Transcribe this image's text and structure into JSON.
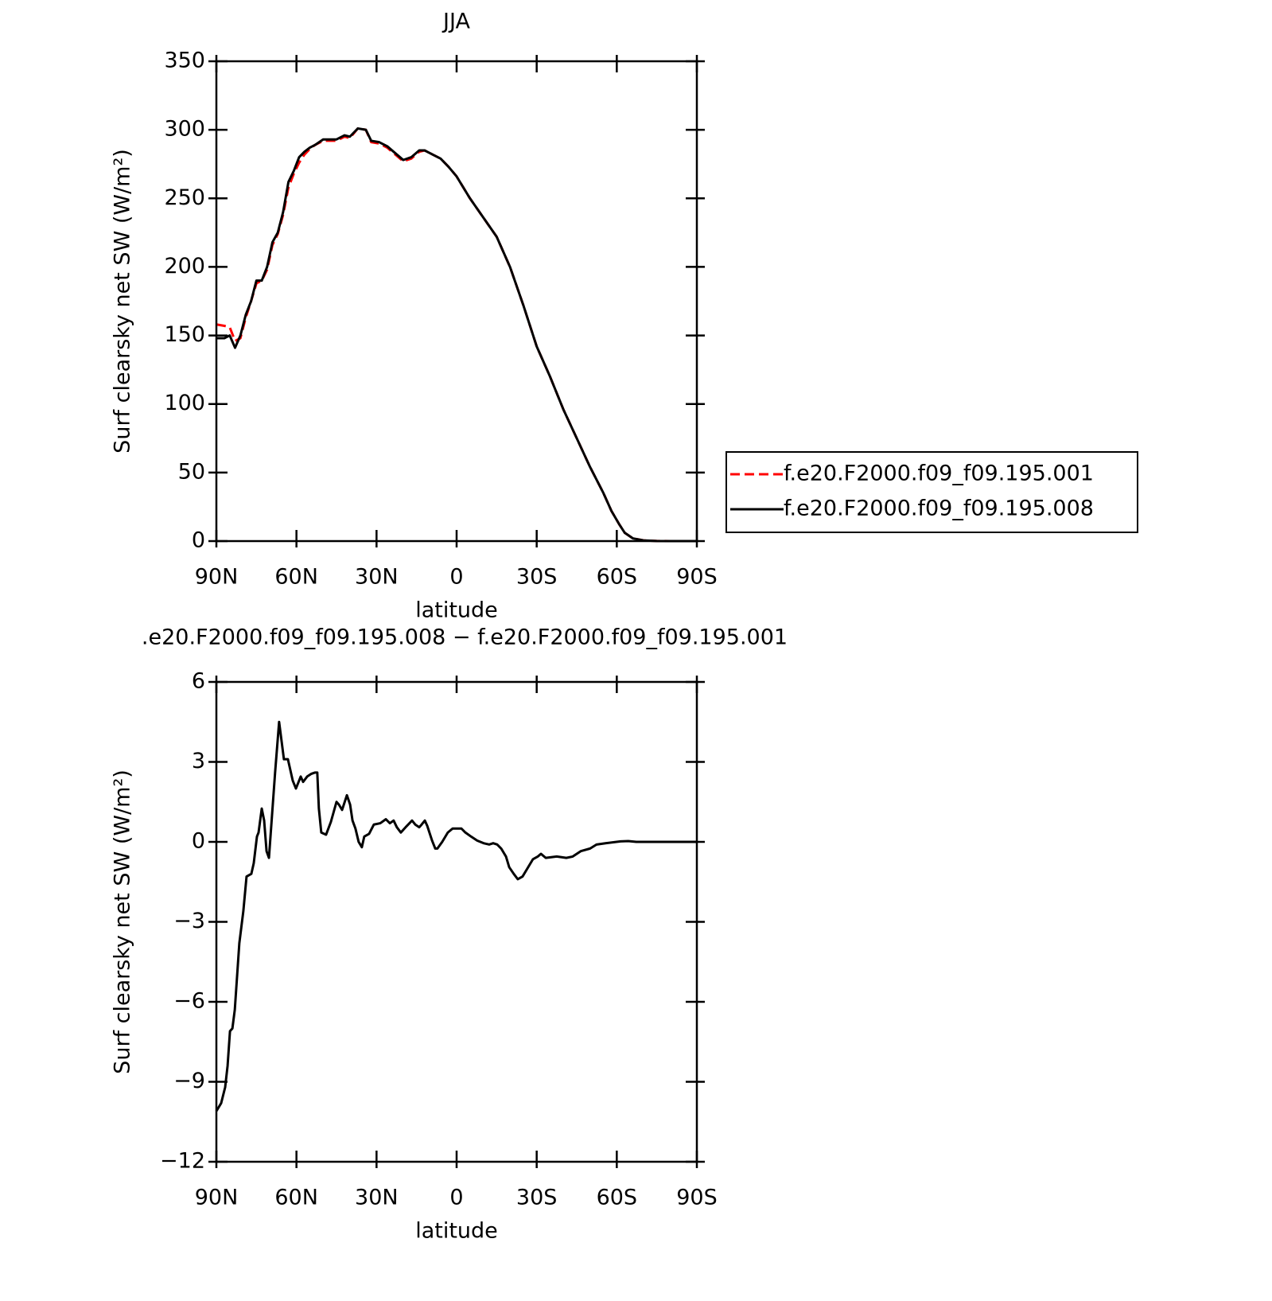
{
  "chart_data": [
    {
      "type": "line",
      "title": "JJA",
      "x_label": "latitude",
      "y_label": "Surf clearsky net SW (W/m²)",
      "x": [
        90,
        87,
        85,
        83,
        81,
        79,
        77,
        75,
        73,
        71,
        69,
        67,
        65,
        63,
        61,
        59,
        57,
        55,
        53,
        50,
        47,
        45,
        42,
        40,
        37,
        34,
        32,
        29,
        26,
        23,
        20,
        17,
        14,
        12,
        9,
        6,
        3,
        0,
        -5,
        -10,
        -15,
        -20,
        -25,
        -30,
        -35,
        -40,
        -45,
        -50,
        -55,
        -58,
        -61,
        -63,
        -66,
        -70,
        -75,
        -80,
        -90
      ],
      "series": [
        {
          "name": "f.e20.F2000.f09_f09.195.001",
          "color": "#ff0000",
          "dashed": true,
          "values": [
            158,
            157,
            156,
            146,
            148,
            163,
            175,
            188,
            190,
            198,
            216,
            224,
            238,
            258,
            268,
            276,
            282,
            286,
            289,
            292,
            292,
            292,
            295,
            294,
            301,
            300,
            291,
            290,
            287,
            282,
            277,
            279,
            284,
            285,
            282,
            279,
            273,
            266,
            250,
            236,
            222,
            200,
            172,
            142,
            120,
            96,
            75,
            54,
            35,
            22,
            12,
            6,
            2,
            0.5,
            0.1,
            0,
            0
          ]
        },
        {
          "name": "f.e20.F2000.f09_f09.195.008",
          "color": "#000000",
          "dashed": false,
          "values": [
            148,
            148,
            150,
            141,
            150,
            165,
            175,
            190,
            190,
            200,
            218,
            225,
            240,
            262,
            270,
            280,
            284,
            287,
            289,
            293,
            293,
            293,
            296,
            295,
            301,
            300,
            292,
            291,
            288,
            283,
            278,
            280,
            285,
            285,
            282,
            279,
            273,
            266,
            250,
            236,
            222,
            200,
            172,
            142,
            120,
            96,
            75,
            54,
            35,
            22,
            12,
            6,
            2,
            0.5,
            0.1,
            0,
            0
          ]
        }
      ],
      "xlim": [
        90,
        -90
      ],
      "xticks": [
        {
          "value": 90,
          "label": "90N"
        },
        {
          "value": 60,
          "label": "60N"
        },
        {
          "value": 30,
          "label": "30N"
        },
        0,
        {
          "value": -30,
          "label": "30S"
        },
        {
          "value": -60,
          "label": "60S"
        },
        {
          "value": -90,
          "label": "90S"
        }
      ],
      "ylim": [
        0,
        350
      ],
      "yticks": [
        0,
        50,
        100,
        150,
        200,
        250,
        300,
        350
      ],
      "legend": "right",
      "grid": false
    },
    {
      "type": "line",
      "title": ".e20.F2000.f09_f09.195.008 − f.e20.F2000.f09_f09.195.001",
      "x_label": "latitude",
      "y_label": "Surf clearsky net SW (W/m²)",
      "x": [
        90,
        88.2,
        86.7,
        85.8,
        84.9,
        84,
        83.1,
        81.4,
        79.9,
        78.7,
        76.9,
        76,
        74.8,
        74.2,
        73,
        72.1,
        71.2,
        70.3,
        68,
        66.5,
        64.7,
        63.2,
        61.4,
        60.2,
        58.4,
        57.5,
        56,
        54.5,
        53.1,
        52.2,
        51.6,
        50.7,
        48.9,
        47.1,
        45,
        44.1,
        42.9,
        41.1,
        39.9,
        39,
        37.9,
        36.7,
        35.5,
        34.6,
        32.8,
        31,
        28.6,
        26.5,
        25,
        23.6,
        22.4,
        20.9,
        19.1,
        16.7,
        15.5,
        14,
        13.1,
        11.9,
        11,
        9.2,
        8,
        7.2,
        5.4,
        3.3,
        1.5,
        -0.3,
        -1.8,
        -3.3,
        -5.4,
        -7.7,
        -10.1,
        -12.2,
        -13.7,
        -15.2,
        -16.7,
        -18.5,
        -19.7,
        -21.4,
        -22.9,
        -24.7,
        -26.5,
        -28.6,
        -30.4,
        -31.6,
        -33.4,
        -37.5,
        -41.1,
        -43.5,
        -46.5,
        -50,
        -52.4,
        -56,
        -61.4,
        -64.3,
        -67.3,
        -90
      ],
      "series": [
        {
          "color": "#000000",
          "dashed": false,
          "values": [
            -10.1,
            -9.8,
            -9.2,
            -8.4,
            -7.1,
            -7.0,
            -6.3,
            -3.8,
            -2.6,
            -1.3,
            -1.2,
            -0.8,
            0.2,
            0.35,
            1.25,
            0.8,
            -0.35,
            -0.6,
            2.6,
            4.5,
            3.1,
            3.1,
            2.3,
            2.0,
            2.45,
            2.25,
            2.45,
            2.55,
            2.6,
            2.6,
            1.25,
            0.35,
            0.27,
            0.75,
            1.5,
            1.4,
            1.2,
            1.75,
            1.4,
            0.8,
            0.5,
            0,
            -0.2,
            0.2,
            0.3,
            0.65,
            0.7,
            0.85,
            0.7,
            0.8,
            0.55,
            0.35,
            0.55,
            0.8,
            0.65,
            0.55,
            0.65,
            0.8,
            0.6,
            0.05,
            -0.25,
            -0.25,
            0,
            0.35,
            0.5,
            0.5,
            0.5,
            0.35,
            0.2,
            0.05,
            -0.05,
            -0.1,
            -0.05,
            -0.1,
            -0.25,
            -0.55,
            -0.95,
            -1.2,
            -1.4,
            -1.3,
            -1.0,
            -0.65,
            -0.55,
            -0.45,
            -0.6,
            -0.55,
            -0.6,
            -0.55,
            -0.35,
            -0.25,
            -0.1,
            -0.05,
            0.02,
            0.03,
            0,
            0
          ]
        }
      ],
      "xlim": [
        90,
        -90
      ],
      "xticks": [
        {
          "value": 90,
          "label": "90N"
        },
        {
          "value": 60,
          "label": "60N"
        },
        {
          "value": 30,
          "label": "30N"
        },
        0,
        {
          "value": -30,
          "label": "30S"
        },
        {
          "value": -60,
          "label": "60S"
        },
        {
          "value": -90,
          "label": "90S"
        }
      ],
      "ylim": [
        -12,
        6
      ],
      "yticks": [
        {
          "value": -12,
          "label": "−12"
        },
        {
          "value": -9,
          "label": "−9"
        },
        {
          "value": -6,
          "label": "−6"
        },
        {
          "value": -3,
          "label": "−3"
        },
        0,
        3,
        6
      ],
      "grid": false
    }
  ]
}
